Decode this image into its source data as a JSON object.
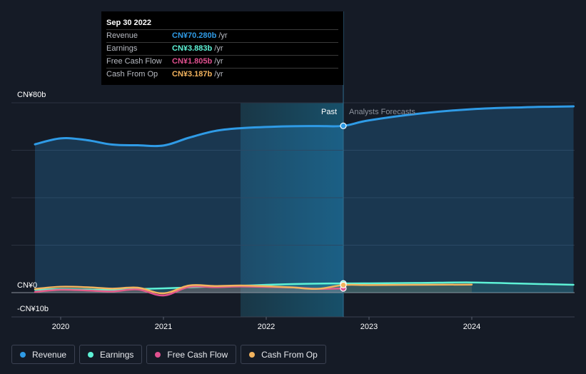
{
  "tooltip": {
    "date": "Sep 30 2022",
    "rows": [
      {
        "label": "Revenue",
        "value": "CN¥70.280b",
        "unit": "/yr",
        "color": "#2f9be6"
      },
      {
        "label": "Earnings",
        "value": "CN¥3.883b",
        "unit": "/yr",
        "color": "#5ef2d6"
      },
      {
        "label": "Free Cash Flow",
        "value": "CN¥1.805b",
        "unit": "/yr",
        "color": "#e0508f"
      },
      {
        "label": "Cash From Op",
        "value": "CN¥3.187b",
        "unit": "/yr",
        "color": "#f2b35e"
      }
    ]
  },
  "markers": {
    "past": "Past",
    "forecast": "Analysts Forecasts"
  },
  "legend": [
    {
      "label": "Revenue",
      "color": "#2f9be6"
    },
    {
      "label": "Earnings",
      "color": "#5ef2d6"
    },
    {
      "label": "Free Cash Flow",
      "color": "#e0508f"
    },
    {
      "label": "Cash From Op",
      "color": "#f2b35e"
    }
  ],
  "chart_data": {
    "type": "line",
    "y_tick_labels": [
      "CN¥80b",
      "CN¥0",
      "-CN¥10b"
    ],
    "y_ticks": [
      80,
      0,
      -10
    ],
    "x_tick_labels": [
      "2020",
      "2021",
      "2022",
      "2023",
      "2024"
    ],
    "x_ticks": [
      2020,
      2021,
      2022,
      2023,
      2024
    ],
    "xlim": [
      2019.55,
      2024.99
    ],
    "ylim": [
      -10,
      80
    ],
    "past_boundary": 2022.75,
    "highlight_range": [
      2021.75,
      2022.75
    ],
    "grid": true,
    "series": [
      {
        "name": "Revenue",
        "color": "#2f9be6",
        "fill": true,
        "x": [
          2019.75,
          2020,
          2020.25,
          2020.5,
          2020.75,
          2021,
          2021.25,
          2021.5,
          2021.75,
          2022,
          2022.25,
          2022.5,
          2022.75,
          2023,
          2023.5,
          2024,
          2024.5,
          2024.99
        ],
        "y": [
          62.5,
          65,
          64.3,
          62.4,
          62.1,
          62,
          65.3,
          68.1,
          69.3,
          69.8,
          70.1,
          70.2,
          70.28,
          72.6,
          75.5,
          77.3,
          78.1,
          78.5
        ]
      },
      {
        "name": "Earnings",
        "color": "#5ef2d6",
        "fill": false,
        "x": [
          2019.75,
          2020,
          2020.25,
          2020.5,
          2020.75,
          2021,
          2021.25,
          2021.5,
          2021.75,
          2022,
          2022.25,
          2022.5,
          2022.75,
          2023,
          2023.5,
          2024,
          2024.5,
          2024.99
        ],
        "y": [
          1.2,
          1.5,
          1.3,
          1.2,
          1.5,
          1.8,
          2.2,
          2.6,
          2.9,
          3.3,
          3.6,
          3.8,
          3.883,
          3.9,
          4.1,
          4.3,
          3.8,
          3.3
        ]
      },
      {
        "name": "Free Cash Flow",
        "color": "#e0508f",
        "fill": false,
        "x": [
          2019.75,
          2020,
          2020.25,
          2020.5,
          2020.75,
          2021,
          2021.25,
          2021.5,
          2021.75,
          2022,
          2022.25,
          2022.5,
          2022.75
        ],
        "y": [
          0.3,
          1.2,
          0.9,
          0.5,
          1.3,
          -1.2,
          2.4,
          2.3,
          2.6,
          2.4,
          2.2,
          1.6,
          1.805
        ]
      },
      {
        "name": "Cash From Op",
        "color": "#f2b35e",
        "fill": false,
        "x": [
          2019.75,
          2020,
          2020.25,
          2020.5,
          2020.75,
          2021,
          2021.25,
          2021.5,
          2021.75,
          2022,
          2022.25,
          2022.5,
          2022.75,
          2023,
          2023.5,
          2024
        ],
        "y": [
          1.6,
          2.5,
          2.3,
          1.7,
          2.1,
          -0.3,
          3,
          2.8,
          3,
          2.7,
          2.2,
          1.6,
          3.187,
          3.2,
          3.3,
          3.4
        ]
      }
    ]
  }
}
